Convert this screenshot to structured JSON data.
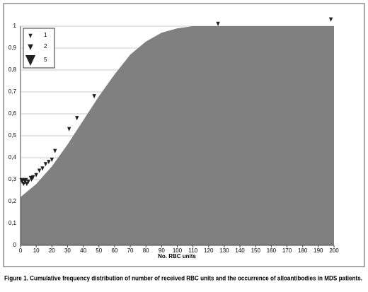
{
  "chart_data": {
    "type": "area",
    "x_label": "No. RBC units",
    "caption": "Figure 1. Cumulative frequency distribution of number of received RBC units and the occurrence of alloantibodies in MDS patients.",
    "x": [
      0,
      5,
      10,
      15,
      20,
      25,
      30,
      40,
      50,
      60,
      70,
      80,
      90,
      100,
      110,
      120,
      130,
      140,
      150,
      160,
      170,
      180,
      190,
      200
    ],
    "values": [
      0.22,
      0.25,
      0.28,
      0.32,
      0.36,
      0.41,
      0.46,
      0.57,
      0.68,
      0.78,
      0.87,
      0.93,
      0.97,
      0.99,
      1.0,
      1.0,
      1.0,
      1.0,
      1.0,
      1.0,
      1.0,
      1.0,
      1.0,
      1.0
    ],
    "color": "#808080",
    "markers": {
      "color": "#222222",
      "x": [
        1,
        2,
        3,
        4,
        5,
        7,
        8,
        10,
        12,
        14,
        16,
        18,
        20,
        22,
        31,
        36,
        47,
        126,
        198
      ],
      "values": [
        0.28,
        0.27,
        0.28,
        0.27,
        0.28,
        0.29,
        0.3,
        0.31,
        0.33,
        0.34,
        0.36,
        0.37,
        0.38,
        0.42,
        0.52,
        0.57,
        0.67,
        1.0,
        1.02
      ],
      "sizes": [
        2,
        1,
        2,
        1,
        1,
        2,
        1,
        1,
        1,
        1,
        1,
        1,
        1,
        1,
        1,
        1,
        1,
        1,
        1
      ]
    },
    "size_legend": [
      1,
      2,
      5
    ],
    "xlim": [
      0,
      200
    ],
    "xticks": [
      0,
      10,
      20,
      30,
      40,
      50,
      60,
      70,
      80,
      90,
      100,
      110,
      120,
      130,
      140,
      150,
      160,
      170,
      180,
      190,
      200
    ],
    "ylim": [
      0,
      1
    ],
    "yticks": [
      0,
      {
        "value": 0.1,
        "label": "0,1"
      },
      {
        "value": 0.2,
        "label": "0,2"
      },
      {
        "value": 0.3,
        "label": "0,3"
      },
      {
        "value": 0.4,
        "label": "0,4"
      },
      {
        "value": 0.5,
        "label": "0,5"
      },
      {
        "value": 0.6,
        "label": "0,6"
      },
      {
        "value": 0.7,
        "label": "0,7"
      },
      {
        "value": 0.8,
        "label": "0,8"
      },
      {
        "value": 0.9,
        "label": "0,9"
      },
      1
    ],
    "grid": true
  }
}
